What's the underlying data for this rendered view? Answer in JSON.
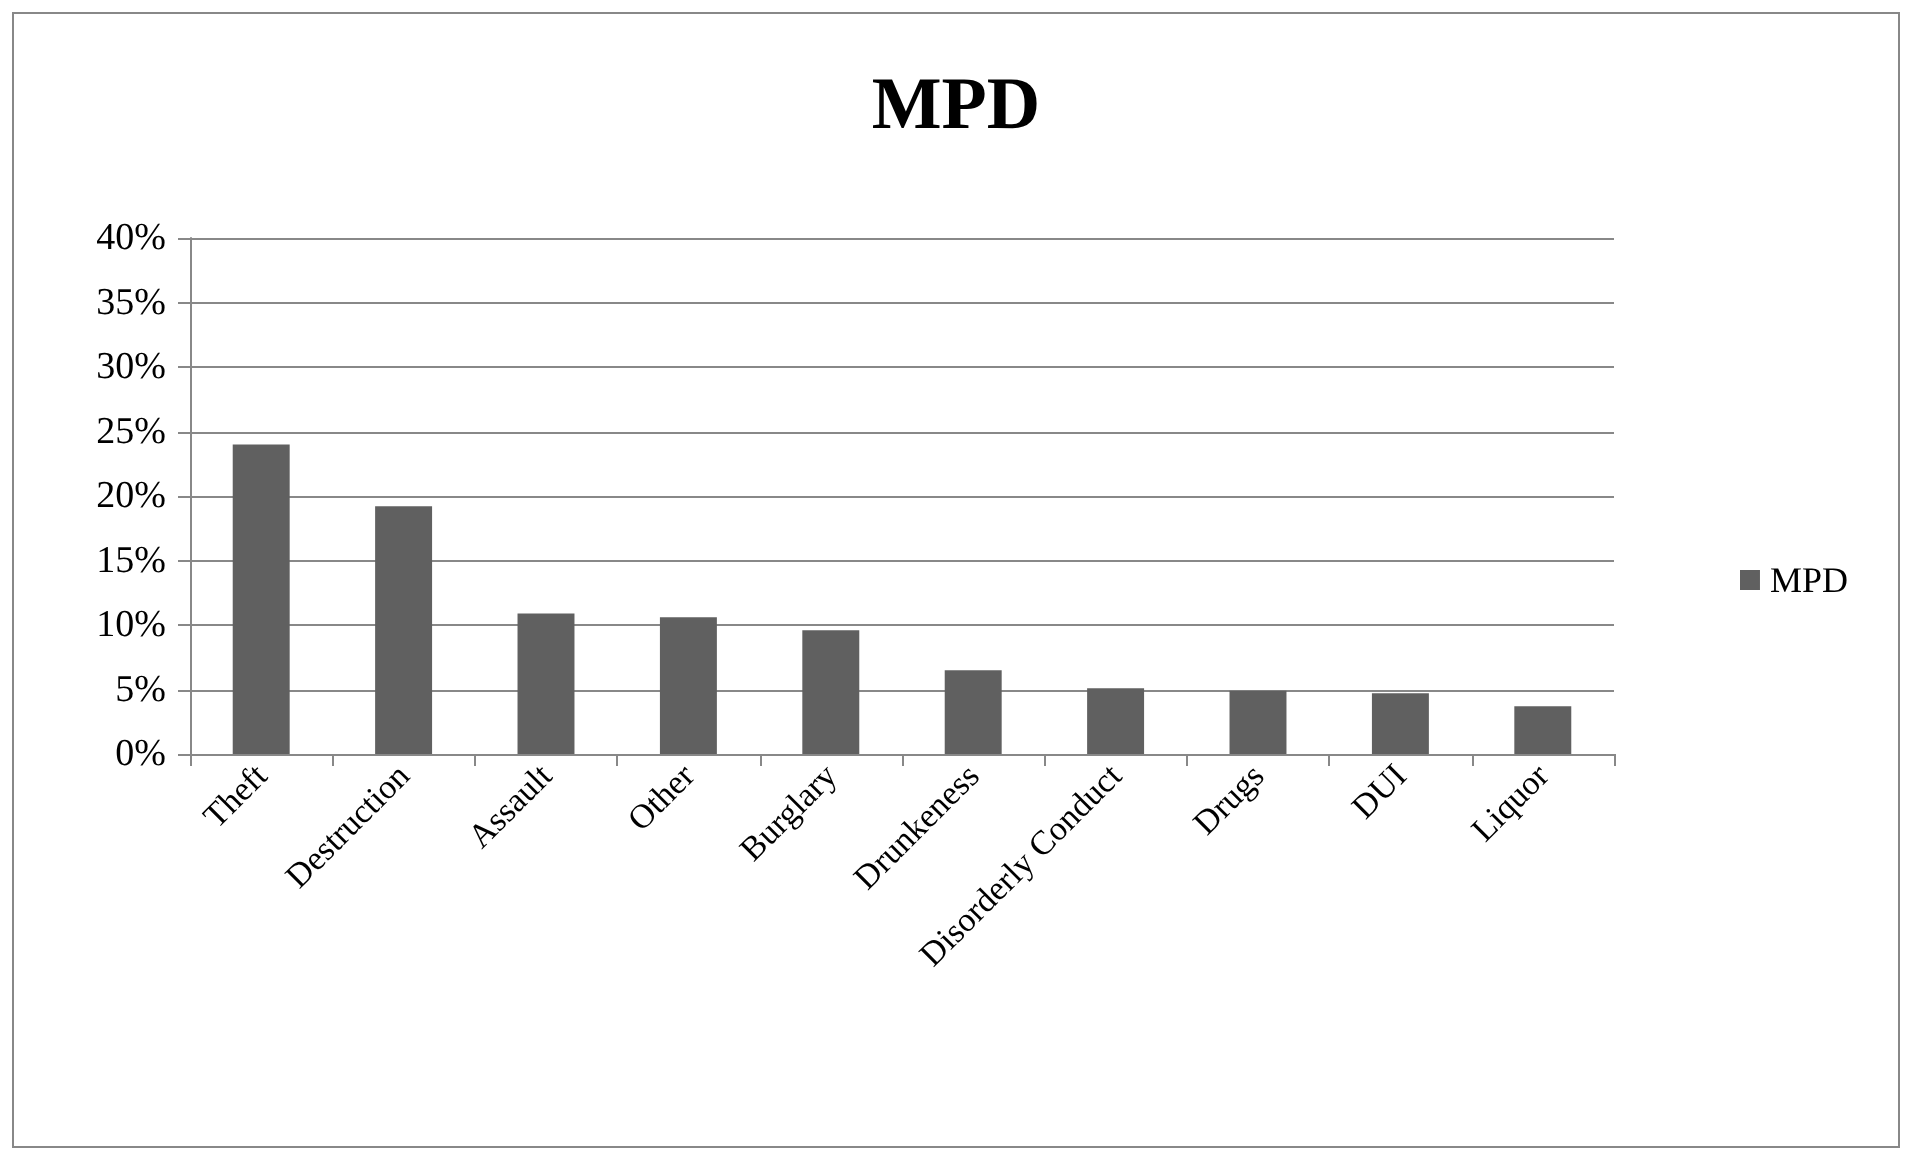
{
  "chart_data": {
    "type": "bar",
    "title": "MPD",
    "categories": [
      "Theft",
      "Destruction",
      "Assault",
      "Other",
      "Burglary",
      "Drunkeness",
      "Disorderly Conduct",
      "Drugs",
      "DUI",
      "Liquor"
    ],
    "series": [
      {
        "name": "MPD",
        "color": "#606060",
        "values": [
          24.0,
          19.2,
          10.9,
          10.6,
          9.6,
          6.5,
          5.1,
          4.9,
          4.7,
          3.7
        ]
      }
    ],
    "ylim": [
      0,
      40
    ],
    "yticks": [
      {
        "value": 0,
        "label": "0%"
      },
      {
        "value": 5,
        "label": "5%"
      },
      {
        "value": 10,
        "label": "10%"
      },
      {
        "value": 15,
        "label": "15%"
      },
      {
        "value": 20,
        "label": "20%"
      },
      {
        "value": 25,
        "label": "25%"
      },
      {
        "value": 30,
        "label": "30%"
      },
      {
        "value": 35,
        "label": "35%"
      },
      {
        "value": 40,
        "label": "40%"
      }
    ],
    "grid": "y",
    "legend": "right"
  }
}
